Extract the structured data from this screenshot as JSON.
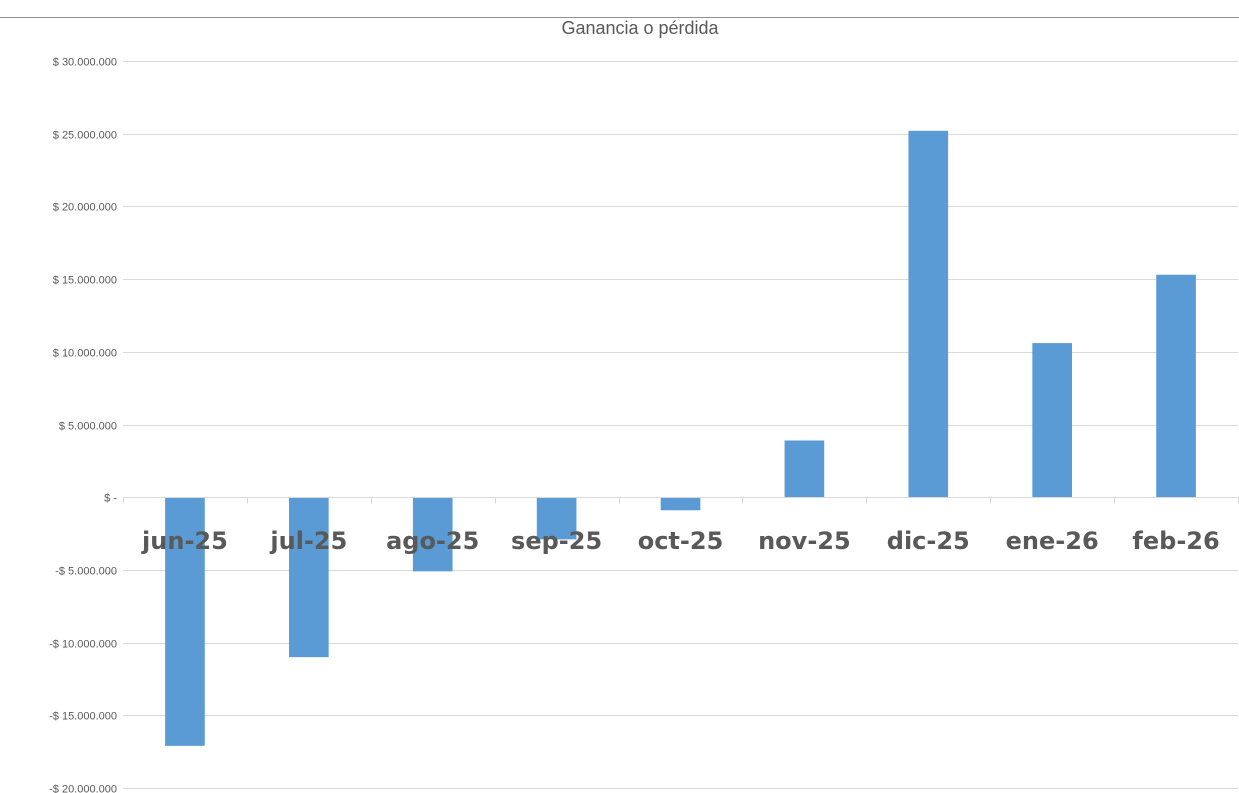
{
  "chart_data": {
    "type": "bar",
    "title": "Ganancia o pérdida",
    "xlabel": "",
    "ylabel": "",
    "categories": [
      "jun-25",
      "jul-25",
      "ago-25",
      "sep-25",
      "oct-25",
      "nov-25",
      "dic-25",
      "ene-26",
      "feb-26"
    ],
    "values": [
      -17100000,
      -11000000,
      -5100000,
      -2900000,
      -900000,
      3900000,
      25200000,
      10600000,
      15300000
    ],
    "ylim": [
      -20000000,
      30000000
    ],
    "yticks": [
      30000000,
      25000000,
      20000000,
      15000000,
      10000000,
      5000000,
      0,
      -5000000,
      -10000000,
      -15000000,
      -20000000
    ],
    "ytick_labels": [
      "$ 30.000.000",
      "$ 25.000.000",
      "$ 20.000.000",
      "$ 15.000.000",
      "$ 10.000.000",
      "$ 5.000.000",
      "$ -",
      "-$ 5.000.000",
      "-$ 10.000.000",
      "-$ 15.000.000",
      "-$ 20.000.000"
    ],
    "grid": true,
    "legend": "none",
    "bar_color": "#5b9bd5"
  }
}
